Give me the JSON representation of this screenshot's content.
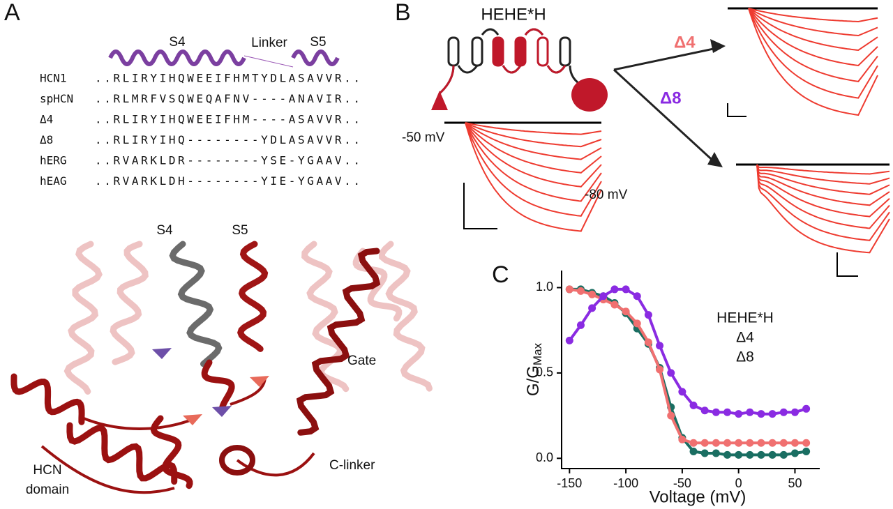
{
  "panel_a": {
    "label": "A",
    "helices": [
      "S4",
      "Linker",
      "S5"
    ],
    "alignment": [
      {
        "name": "HCN1",
        "sequence": "..RLIRYIHQWEEIFHMTYDLASAVVR.."
      },
      {
        "name": "spHCN",
        "sequence": "..RLMRFVSQWEQAFNV----ANAVIR.."
      },
      {
        "name": "Δ4",
        "sequence": "..RLIRYIHQWEEIFHM----ASAVVR.."
      },
      {
        "name": "Δ8",
        "sequence": "..RLIRYIHQ--------YDLASAVVR.."
      },
      {
        "name": "hERG",
        "sequence": "..RVARKLDR--------YSE-YGAAV.."
      },
      {
        "name": "hEAG",
        "sequence": "..RVARKLDH--------YIE-YGAAV.."
      }
    ],
    "structure_labels": {
      "s4": "S4",
      "s5": "S5",
      "gate": "Gate",
      "hcn_domain": [
        "HCN",
        "domain"
      ],
      "c_linker": "C-linker"
    }
  },
  "panel_b": {
    "label": "B",
    "construct": "HEHE*H",
    "delta4": "Δ4",
    "delta8": "Δ8",
    "hold": "-50 mV",
    "tail": "-80 mV"
  },
  "chart_data": {
    "panel_label": "C",
    "type": "line",
    "x_label": "Voltage (mV)",
    "y_label": "G/G",
    "y_label_sub": "Max",
    "x": [
      -150,
      -140,
      -130,
      -120,
      -110,
      -100,
      -90,
      -80,
      -70,
      -60,
      -50,
      -40,
      -30,
      -20,
      -10,
      0,
      10,
      20,
      30,
      40,
      50,
      60
    ],
    "series": [
      {
        "name": "HEHE*H",
        "color": "#1a6e62",
        "values": [
          0.99,
          0.99,
          0.97,
          0.95,
          0.91,
          0.85,
          0.76,
          0.67,
          0.53,
          0.3,
          0.12,
          0.04,
          0.03,
          0.03,
          0.02,
          0.02,
          0.02,
          0.02,
          0.02,
          0.02,
          0.03,
          0.04
        ]
      },
      {
        "name": "Δ4",
        "color": "#f07070",
        "values": [
          0.99,
          0.98,
          0.96,
          0.93,
          0.9,
          0.86,
          0.79,
          0.68,
          0.52,
          0.25,
          0.11,
          0.09,
          0.09,
          0.09,
          0.09,
          0.09,
          0.09,
          0.09,
          0.09,
          0.09,
          0.09,
          0.09
        ]
      },
      {
        "name": "Δ8",
        "color": "#8a2be2",
        "values": [
          0.69,
          0.78,
          0.88,
          0.95,
          0.99,
          0.99,
          0.95,
          0.84,
          0.66,
          0.5,
          0.39,
          0.31,
          0.28,
          0.27,
          0.27,
          0.26,
          0.27,
          0.26,
          0.26,
          0.27,
          0.27,
          0.29
        ]
      }
    ],
    "xlim": [
      -157,
      72
    ],
    "xticks": [
      -150,
      -100,
      -50,
      0,
      50
    ],
    "ylim": [
      -0.06,
      1.1
    ],
    "yticks": [
      {
        "value": 0,
        "label": "0.0"
      },
      {
        "value": 0.5,
        "label": "0.5"
      },
      {
        "value": 1,
        "label": "1.0"
      }
    ]
  }
}
